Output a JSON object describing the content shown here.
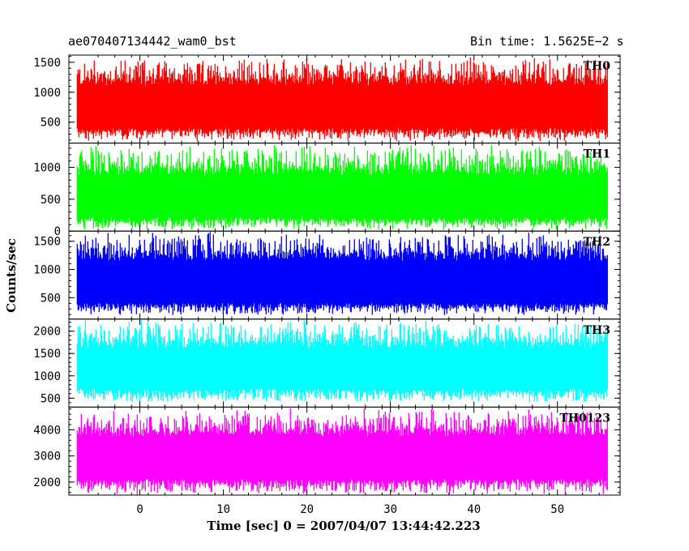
{
  "header": {
    "file_label": "ae070407134442_wam0_bst",
    "bin_label": "Bin time: 1.5625E−2 s"
  },
  "axes": {
    "ylabel": "Counts/sec",
    "xlabel": "Time [sec] 0 = 2007/04/07 13:44:42.223"
  },
  "chart_data": [
    {
      "type": "area",
      "title": "TH0",
      "color": "#ff0000",
      "xlim": [
        -8.5,
        57.5
      ],
      "ylim": [
        150,
        1620
      ],
      "x_ticks": [
        0,
        10,
        20,
        30,
        40,
        50
      ],
      "y_ticks": [
        500,
        1000,
        1500
      ],
      "x_range": [
        -7.5,
        56
      ],
      "band": {
        "low_typical": 330,
        "low_min": 170,
        "high_typical": 1250,
        "high_max": 1600
      }
    },
    {
      "type": "area",
      "title": "TH1",
      "color": "#00ff00",
      "xlim": [
        -8.5,
        57.5
      ],
      "ylim": [
        0,
        1380
      ],
      "x_ticks": [
        0,
        10,
        20,
        30,
        40,
        50
      ],
      "y_ticks": [
        0,
        500,
        1000
      ],
      "x_range": [
        -7.5,
        56
      ],
      "band": {
        "low_typical": 150,
        "low_min": 10,
        "high_typical": 1000,
        "high_max": 1380
      }
    },
    {
      "type": "area",
      "title": "TH2",
      "color": "#0000ff",
      "xlim": [
        -8.5,
        57.5
      ],
      "ylim": [
        120,
        1680
      ],
      "x_ticks": [
        0,
        10,
        20,
        30,
        40,
        50
      ],
      "y_ticks": [
        500,
        1000,
        1500
      ],
      "x_range": [
        -7.5,
        56
      ],
      "band": {
        "low_typical": 330,
        "low_min": 180,
        "high_typical": 1300,
        "high_max": 1680
      }
    },
    {
      "type": "area",
      "title": "TH3",
      "color": "#00ffff",
      "xlim": [
        -8.5,
        57.5
      ],
      "ylim": [
        300,
        2270
      ],
      "x_ticks": [
        0,
        10,
        20,
        30,
        40,
        50
      ],
      "y_ticks": [
        500,
        1000,
        1500,
        2000
      ],
      "x_range": [
        -7.5,
        56
      ],
      "band": {
        "low_typical": 620,
        "low_min": 380,
        "high_typical": 1800,
        "high_max": 2270
      }
    },
    {
      "type": "area",
      "title": "TH0123",
      "color": "#ff00ff",
      "xlim": [
        -8.5,
        57.5
      ],
      "ylim": [
        1500,
        4870
      ],
      "x_ticks": [
        0,
        10,
        20,
        30,
        40,
        50
      ],
      "y_ticks": [
        2000,
        3000,
        4000
      ],
      "x_range": [
        -7.5,
        56
      ],
      "band": {
        "low_typical": 1950,
        "low_min": 1500,
        "high_typical": 4050,
        "high_max": 4850
      }
    }
  ]
}
